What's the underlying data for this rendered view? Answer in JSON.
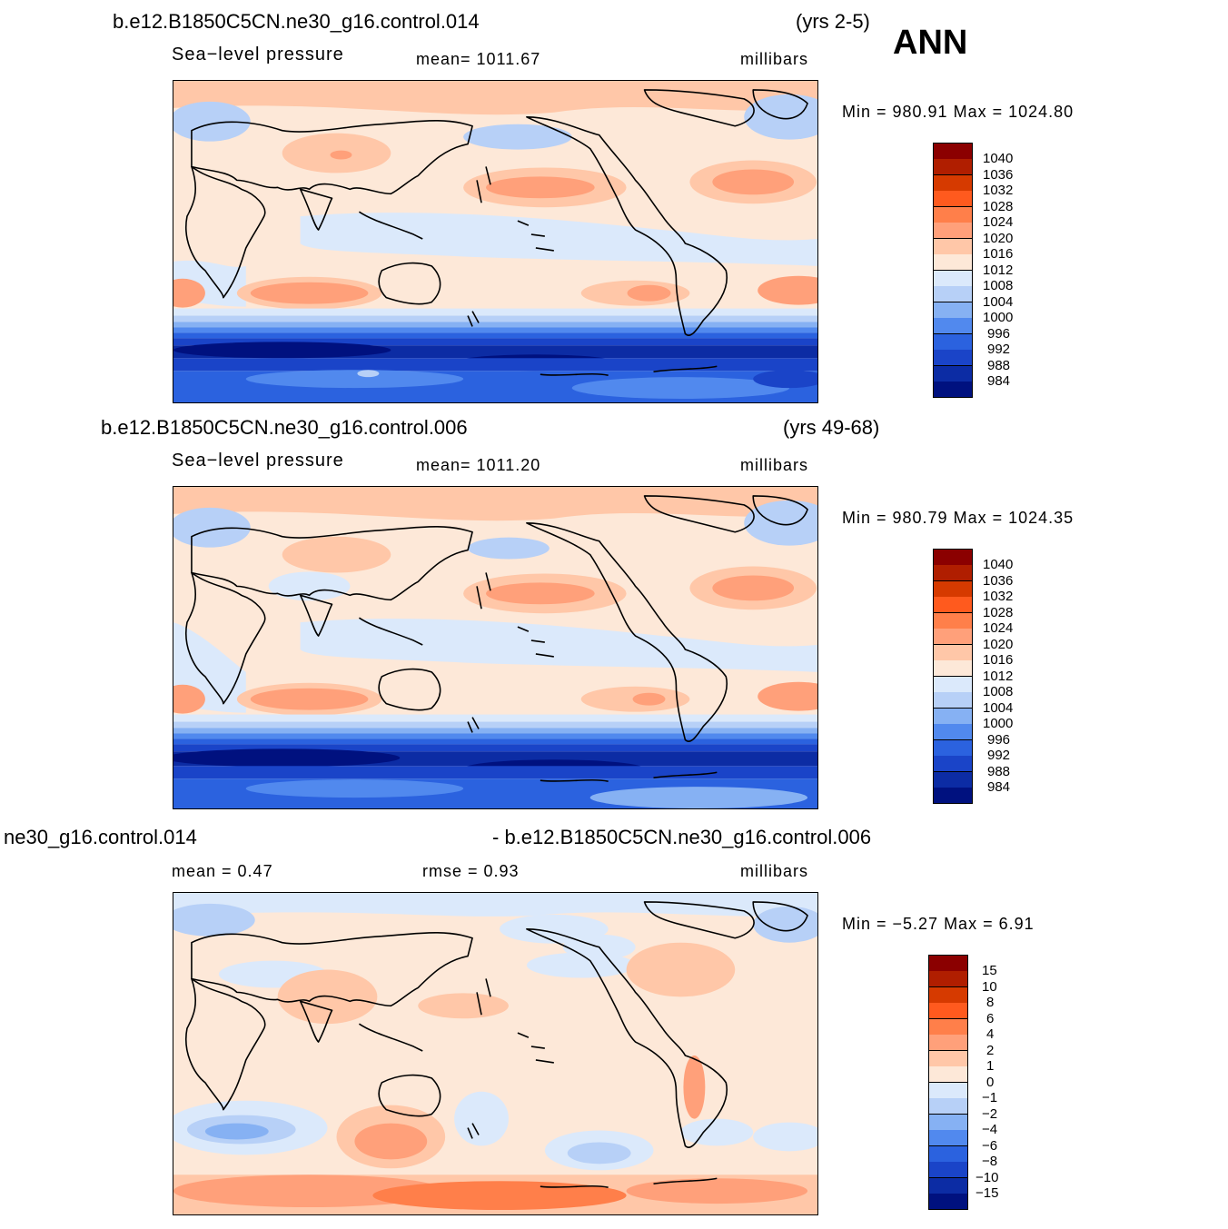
{
  "season": "ANN",
  "colors": {
    "mean_scale": [
      "#8b0000",
      "#b01e00",
      "#d63a00",
      "#ff5a1e",
      "#ff7f4a",
      "#ffa07a",
      "#ffc7a8",
      "#fde8d8",
      "#dbe9fb",
      "#b7d0f7",
      "#86b1f3",
      "#5189ee",
      "#2b62df",
      "#1a44c8",
      "#0c2ca4",
      "#00117f"
    ],
    "diff_scale": [
      "#8b0000",
      "#b01e00",
      "#d63a00",
      "#ff5a1e",
      "#ff7f4a",
      "#ffa07a",
      "#ffc7a8",
      "#fde8d8",
      "#dbe9fb",
      "#b7d0f7",
      "#86b1f3",
      "#5189ee",
      "#2b62df",
      "#1a44c8",
      "#0c2ca4",
      "#00117f"
    ]
  },
  "panels": [
    {
      "title": "b.e12.B1850C5CN.ne30_g16.control.014",
      "years": "(yrs 2-5)",
      "variable": "Sea−level pressure",
      "mean_text": "mean=  1011.67",
      "units": "millibars",
      "minmax": "Min  =  980.91  Max  =  1024.80",
      "colorbar_labels": [
        "1040",
        "1036",
        "1032",
        "1028",
        "1024",
        "1020",
        "1016",
        "1012",
        "1008",
        "1004",
        "1000",
        "996",
        "992",
        "988",
        "984"
      ]
    },
    {
      "title": "b.e12.B1850C5CN.ne30_g16.control.006",
      "years": "(yrs 49-68)",
      "variable": "Sea−level pressure",
      "mean_text": "mean=  1011.20",
      "units": "millibars",
      "minmax": "Min  =  980.79  Max  =  1024.35",
      "colorbar_labels": [
        "1040",
        "1036",
        "1032",
        "1028",
        "1024",
        "1020",
        "1016",
        "1012",
        "1008",
        "1004",
        "1000",
        "996",
        "992",
        "988",
        "984"
      ]
    },
    {
      "title_left": "ne30_g16.control.014",
      "title_right": "- b.e12.B1850C5CN.ne30_g16.control.006",
      "mean_text": "mean  =     0.47",
      "rmse_text": "rmse  =     0.93",
      "units": "millibars",
      "minmax": "Min  =    −5.27  Max  =      6.91",
      "colorbar_labels": [
        "15",
        "10",
        "8",
        "6",
        "4",
        "2",
        "1",
        "0",
        "−1",
        "−2",
        "−4",
        "−6",
        "−8",
        "−10",
        "−15"
      ]
    }
  ]
}
